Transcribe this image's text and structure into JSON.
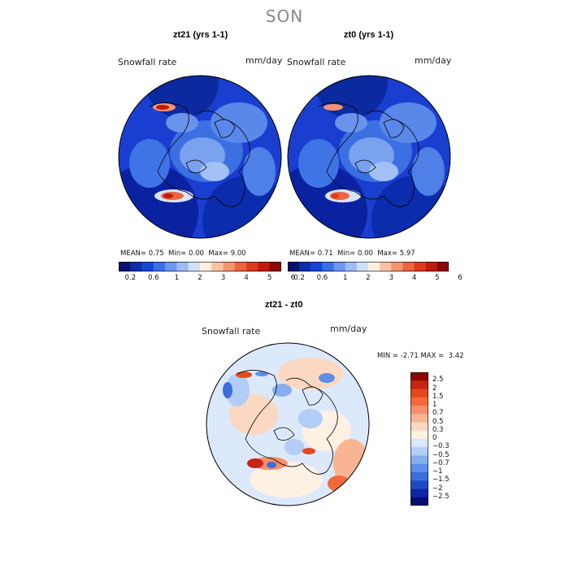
{
  "figure_title": "SON",
  "panels": [
    {
      "title": "zt21 (yrs 1-1)",
      "variable": "Snowfall rate",
      "units": "mm/day",
      "stats": {
        "mean_label": "MEAN=",
        "mean": "0.75",
        "min_label": "Min=",
        "min": "0.00",
        "max_label": "Max=",
        "max": "9.00"
      }
    },
    {
      "title": "zt0 (yrs 1-1)",
      "variable": "Snowfall rate",
      "units": "mm/day",
      "stats": {
        "mean_label": "MEAN=",
        "mean": "0.71",
        "min_label": "Min=",
        "min": "0.00",
        "max_label": "Max=",
        "max": "5.97"
      }
    },
    {
      "title": "zt21 - zt0",
      "variable": "Snowfall rate",
      "units": "mm/day",
      "stats": {
        "min_label": "MIN =",
        "min": "-2.71",
        "max_label": "MAX =",
        "max": "3.42"
      }
    }
  ],
  "colorbar_abs": {
    "colors": [
      "#08106e",
      "#0a2fa8",
      "#1747d6",
      "#3a6fe6",
      "#6d96ef",
      "#9fbcf5",
      "#d2e1fb",
      "#fff0e0",
      "#f9c3a4",
      "#f4946f",
      "#ec6440",
      "#dc3a1c",
      "#c01a0c",
      "#8c0606"
    ],
    "tick_labels": [
      "0.2",
      "0.6",
      "1",
      "2",
      "3",
      "4",
      "5",
      "6"
    ]
  },
  "colorbar_diff": {
    "colors": [
      "#8c0606",
      "#c8240f",
      "#e4481c",
      "#f26a3c",
      "#f69068",
      "#f8b493",
      "#fcd8c2",
      "#fdf1e4",
      "#d9e8fb",
      "#b2cdf6",
      "#86aff1",
      "#5d8ee9",
      "#3b6ddb",
      "#1f49c6",
      "#0c27a6",
      "#050d72"
    ],
    "tick_labels": [
      "2.5",
      "2",
      "1.5",
      "1",
      "0.7",
      "0.5",
      "0.3",
      "0",
      "−0.3",
      "−0.5",
      "−0.7",
      "−1",
      "−1.5",
      "−2",
      "−2.5"
    ]
  }
}
